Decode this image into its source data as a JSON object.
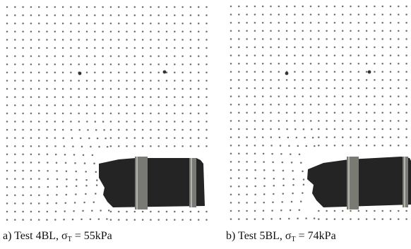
{
  "figure": {
    "panels": [
      {
        "caption_prefix": "a) Test 4BL, ",
        "sigma": "σ",
        "sigma_subscript": "T",
        "caption_value": " = 55kPa"
      },
      {
        "caption_prefix": "b) Test 5BL, ",
        "sigma": "σ",
        "sigma_subscript": "T",
        "caption_value": " = 74kPa"
      }
    ]
  },
  "colors": {
    "background": "#ffffff",
    "grid_dot": "#555555",
    "marker_dot": "#333333",
    "anchor_dark": "#242424",
    "strap": "#7a7a74",
    "strap_highlight": "#cfcfc8"
  }
}
